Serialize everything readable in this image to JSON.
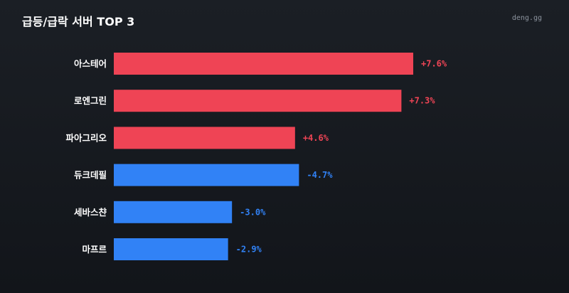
{
  "header": {
    "title": "급등/급락 서버 TOP 3",
    "brand": "deng.gg"
  },
  "colors": {
    "up": "#ef4455",
    "down": "#3182f6"
  },
  "chart_data": {
    "type": "bar",
    "orientation": "horizontal",
    "title": "급등/급락 서버 TOP 3",
    "categories": [
      "아스테어",
      "로엔그린",
      "파아그리오",
      "듀크데필",
      "세바스챤",
      "마프르"
    ],
    "values": [
      7.6,
      7.3,
      4.6,
      -4.7,
      -3.0,
      -2.9
    ],
    "value_labels": [
      "+7.6%",
      "+7.3%",
      "+4.6%",
      "-4.7%",
      "-3.0%",
      "-2.9%"
    ],
    "xlim": [
      0,
      7.6
    ],
    "grid": false,
    "legend": "none"
  }
}
